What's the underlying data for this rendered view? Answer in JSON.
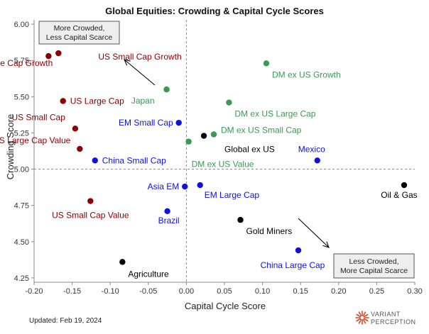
{
  "chart_data": {
    "type": "scatter",
    "title": "Global Equities: Crowding & Capital Cycle Scores",
    "xlabel": "Capital Cycle Score",
    "ylabel": "Crowding Score",
    "xlim": [
      -0.2,
      0.3
    ],
    "ylim": [
      4.22,
      6.03
    ],
    "xticks": [
      "-0.20",
      "-0.15",
      "-0.10",
      "-0.05",
      "0.00",
      "0.05",
      "0.10",
      "0.15",
      "0.20",
      "0.25",
      "0.30"
    ],
    "xtick_values": [
      -0.2,
      -0.15,
      -0.1,
      -0.05,
      0.0,
      0.05,
      0.1,
      0.15,
      0.2,
      0.25,
      0.3
    ],
    "yticks": [
      "4.25",
      "4.50",
      "4.75",
      "5.00",
      "5.25",
      "5.50",
      "5.75",
      "6.00"
    ],
    "ytick_values": [
      4.25,
      4.5,
      4.75,
      5.0,
      5.25,
      5.5,
      5.75,
      6.0
    ],
    "reference_lines": {
      "x": 0.0,
      "y": 5.0
    },
    "colors": {
      "US": "#8b0000",
      "DM": "#3a9a50",
      "EM": "#1010e0",
      "Other": "#000000"
    },
    "points": [
      {
        "label": "US Large Cap Growth",
        "x": -0.168,
        "y": 5.8,
        "group": "US",
        "label_pos": "below-left"
      },
      {
        "label": "US Small Cap Growth",
        "x": -0.181,
        "y": 5.78,
        "group": "US",
        "label_pos": "right-far"
      },
      {
        "label": "US Large Cap",
        "x": -0.162,
        "y": 5.47,
        "group": "US",
        "label_pos": "right"
      },
      {
        "label": "US Small Cap",
        "x": -0.146,
        "y": 5.28,
        "group": "US",
        "label_pos": "above-left"
      },
      {
        "label": "US Large Cap Value",
        "x": -0.14,
        "y": 5.14,
        "group": "US",
        "label_pos": "above-left"
      },
      {
        "label": "US Small Cap Value",
        "x": -0.126,
        "y": 4.78,
        "group": "US",
        "label_pos": "below"
      },
      {
        "label": "Japan",
        "x": -0.026,
        "y": 5.55,
        "group": "DM",
        "label_pos": "below-left"
      },
      {
        "label": "DM ex US Growth",
        "x": 0.105,
        "y": 5.73,
        "group": "DM",
        "label_pos": "below-right"
      },
      {
        "label": "DM ex US Large Cap",
        "x": 0.056,
        "y": 5.46,
        "group": "DM",
        "label_pos": "below-right"
      },
      {
        "label": "DM ex US Small Cap",
        "x": 0.036,
        "y": 5.24,
        "group": "DM",
        "label_pos": "right-up"
      },
      {
        "label": "DM ex US Value",
        "x": 0.003,
        "y": 5.19,
        "group": "DM",
        "label_pos": "below-right"
      },
      {
        "label": "EM Small Cap",
        "x": -0.01,
        "y": 5.32,
        "group": "EM",
        "label_pos": "left"
      },
      {
        "label": "China Small Cap",
        "x": -0.12,
        "y": 5.06,
        "group": "EM",
        "label_pos": "right"
      },
      {
        "label": "Asia EM",
        "x": -0.002,
        "y": 4.88,
        "group": "EM",
        "label_pos": "left"
      },
      {
        "label": "EM Large Cap",
        "x": 0.018,
        "y": 4.89,
        "group": "EM",
        "label_pos": "below-right"
      },
      {
        "label": "Brazil",
        "x": -0.025,
        "y": 4.71,
        "group": "EM",
        "label_pos": "below"
      },
      {
        "label": "Mexico",
        "x": 0.172,
        "y": 5.06,
        "group": "EM",
        "label_pos": "above-left"
      },
      {
        "label": "China Large Cap",
        "x": 0.147,
        "y": 4.44,
        "group": "EM",
        "label_pos": "below"
      },
      {
        "label": "Global ex US",
        "x": 0.023,
        "y": 5.23,
        "group": "Other",
        "label_pos": "below-right"
      },
      {
        "label": "Oil & Gas",
        "x": 0.286,
        "y": 4.89,
        "group": "Other",
        "label_pos": "below"
      },
      {
        "label": "Gold Miners",
        "x": 0.071,
        "y": 4.65,
        "group": "Other",
        "label_pos": "below-right"
      },
      {
        "label": "Agriculture",
        "x": -0.084,
        "y": 4.36,
        "group": "Other",
        "label_pos": "below-right"
      }
    ],
    "annotations": {
      "top_left_box": [
        "More Crowded,",
        "Less Capital Scarce"
      ],
      "bottom_right_box": [
        "Less Crowded,",
        "More Capital Scarce"
      ]
    }
  },
  "footer": {
    "updated": "Updated: Feb 19, 2024",
    "logo_line1": "VARIANT",
    "logo_line2": "PERCEPTION",
    "logo_color": "#d34a2e"
  }
}
